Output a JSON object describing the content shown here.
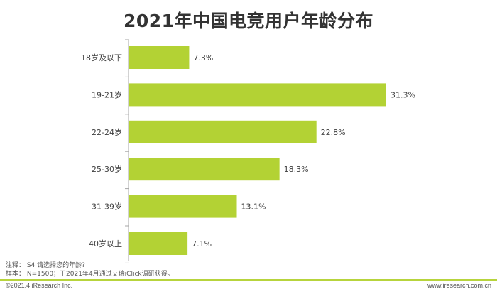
{
  "chart_data": {
    "type": "bar",
    "orientation": "horizontal",
    "title": "2021年中国电竞用户年龄分布",
    "categories": [
      "18岁及以下",
      "19-21岁",
      "22-24岁",
      "25-30岁",
      "31-39岁",
      "40岁以上"
    ],
    "values": [
      7.3,
      31.3,
      22.8,
      18.3,
      13.1,
      7.1
    ],
    "value_labels": [
      "7.3%",
      "31.3%",
      "22.8%",
      "18.3%",
      "13.1%",
      "7.1%"
    ],
    "xlim": [
      0,
      31.3
    ],
    "grid": false,
    "bar_color": "#b3d234"
  },
  "notes": {
    "line1": "注释：   S4 请选择您的年龄?",
    "line2": "样本：  N=1500；于2021年4月通过艾瑞iClick调研获得。"
  },
  "footer": {
    "copyright": "©2021.4 iResearch Inc.",
    "site": "www.iresearch.com.cn"
  }
}
